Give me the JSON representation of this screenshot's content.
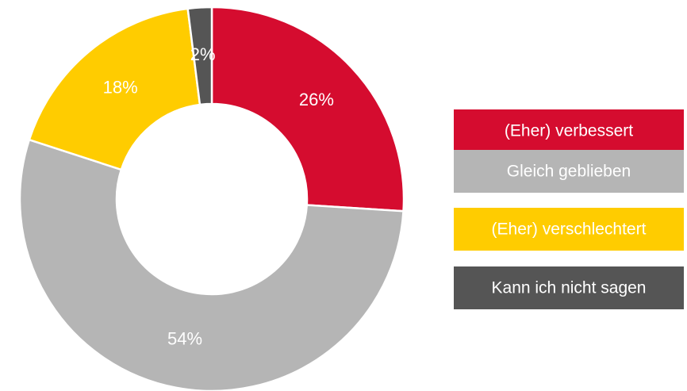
{
  "chart_data": {
    "type": "donut",
    "categories": [
      "(Eher) verbessert",
      "Gleich geblieben",
      "(Eher) verschlechtert",
      "Kann ich nicht sagen"
    ],
    "values": [
      26,
      54,
      18,
      2
    ],
    "value_labels": [
      "26%",
      "54%",
      "18%",
      "2%"
    ],
    "colors": [
      "#d50c2f",
      "#b5b5b5",
      "#ffcc00",
      "#555555"
    ],
    "legend": "right"
  }
}
